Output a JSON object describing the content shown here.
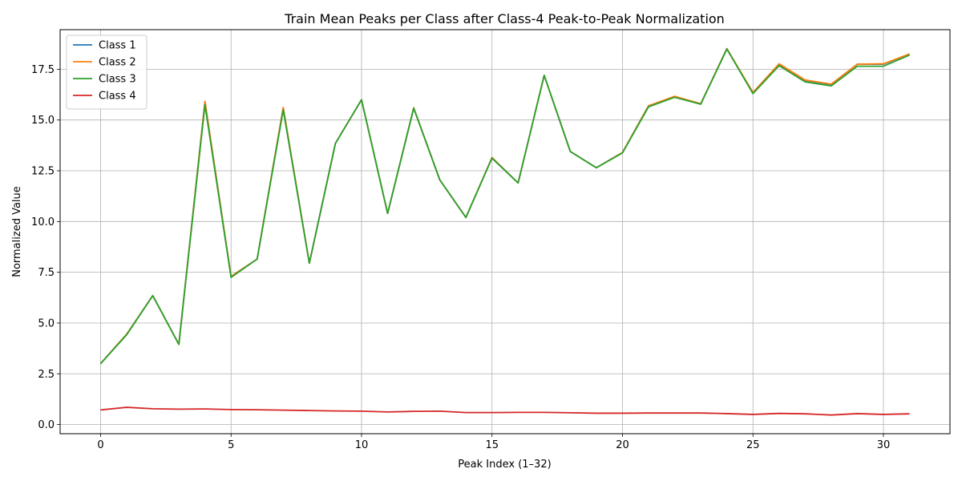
{
  "chart_data": {
    "type": "line",
    "title": "Train Mean Peaks per Class after Class-4 Peak-to-Peak Normalization",
    "xlabel": "Peak Index (1–32)",
    "ylabel": "Normalized Value",
    "xlim": [
      -1.55,
      32.55
    ],
    "ylim": [
      -0.45,
      19.45
    ],
    "xticks": [
      0,
      5,
      10,
      15,
      20,
      25,
      30
    ],
    "xtick_labels": [
      "0",
      "5",
      "10",
      "15",
      "20",
      "25",
      "30"
    ],
    "yticks": [
      0,
      2.5,
      5,
      7.5,
      10,
      12.5,
      15,
      17.5
    ],
    "ytick_labels": [
      "0.0",
      "2.5",
      "5.0",
      "7.5",
      "10.0",
      "12.5",
      "15.0",
      "17.5"
    ],
    "grid": true,
    "legend_position": "top-left",
    "x": [
      0,
      1,
      2,
      3,
      4,
      5,
      6,
      7,
      8,
      9,
      10,
      11,
      12,
      13,
      14,
      15,
      16,
      17,
      18,
      19,
      20,
      21,
      22,
      23,
      24,
      25,
      26,
      27,
      28,
      29,
      30,
      31
    ],
    "series": [
      {
        "name": "Class 1",
        "color": "#1f77b4",
        "values": [
          3.0,
          4.45,
          6.35,
          3.95,
          15.9,
          7.3,
          8.15,
          15.6,
          7.95,
          13.85,
          16.0,
          10.4,
          15.6,
          12.05,
          10.2,
          13.15,
          11.9,
          17.2,
          13.45,
          12.65,
          13.4,
          15.7,
          16.15,
          15.8,
          18.5,
          16.35,
          17.75,
          16.95,
          16.75,
          17.75,
          17.75,
          18.25
        ]
      },
      {
        "name": "Class 2",
        "color": "#ff7f0e",
        "values": [
          3.0,
          4.45,
          6.35,
          3.95,
          15.92,
          7.3,
          8.15,
          15.62,
          7.95,
          13.85,
          16.0,
          10.4,
          15.6,
          12.05,
          10.2,
          13.15,
          11.9,
          17.2,
          13.45,
          12.65,
          13.4,
          15.7,
          16.17,
          15.8,
          18.52,
          16.35,
          17.77,
          16.97,
          16.77,
          17.75,
          17.77,
          18.25
        ]
      },
      {
        "name": "Class 3",
        "color": "#2ca02c",
        "values": [
          3.0,
          4.42,
          6.35,
          3.95,
          15.75,
          7.25,
          8.15,
          15.5,
          7.95,
          13.85,
          16.0,
          10.4,
          15.58,
          12.05,
          10.2,
          13.12,
          11.9,
          17.2,
          13.45,
          12.65,
          13.38,
          15.65,
          16.12,
          15.78,
          18.5,
          16.3,
          17.68,
          16.88,
          16.68,
          17.65,
          17.65,
          18.2
        ]
      },
      {
        "name": "Class 4",
        "color": "#d62728",
        "values": [
          0.72,
          0.85,
          0.78,
          0.76,
          0.77,
          0.74,
          0.73,
          0.71,
          0.69,
          0.67,
          0.66,
          0.62,
          0.65,
          0.66,
          0.59,
          0.59,
          0.6,
          0.6,
          0.58,
          0.56,
          0.56,
          0.57,
          0.57,
          0.57,
          0.54,
          0.5,
          0.55,
          0.53,
          0.47,
          0.54,
          0.5,
          0.53
        ]
      }
    ]
  }
}
